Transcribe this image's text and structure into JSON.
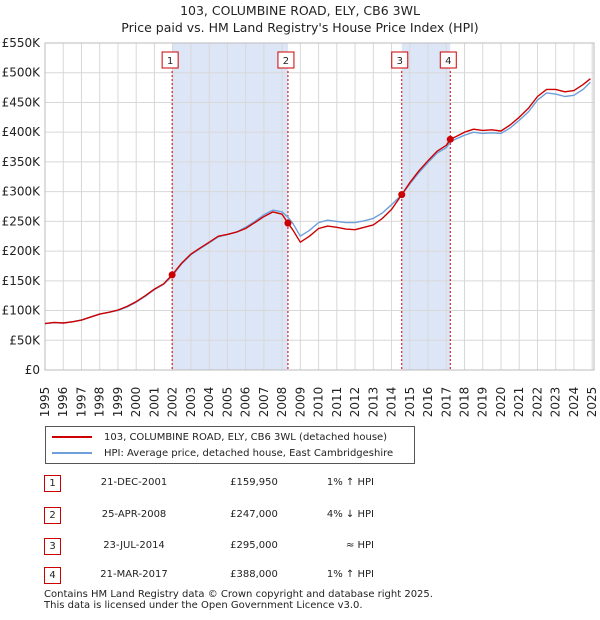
{
  "chart_data": {
    "type": "line",
    "title": "103, COLUMBINE ROAD, ELY, CB6 3WL",
    "subtitle": "Price paid vs. HM Land Registry's House Price Index (HPI)",
    "xlim": [
      1995,
      2025.1
    ],
    "ylim": [
      0,
      550000
    ],
    "x_ticks": [
      1995,
      1996,
      1997,
      1998,
      1999,
      2000,
      2001,
      2002,
      2003,
      2004,
      2005,
      2006,
      2007,
      2008,
      2009,
      2010,
      2011,
      2012,
      2013,
      2014,
      2015,
      2016,
      2017,
      2018,
      2019,
      2020,
      2021,
      2022,
      2023,
      2024,
      2025
    ],
    "y_ticks": [
      0,
      50000,
      100000,
      150000,
      200000,
      250000,
      300000,
      350000,
      400000,
      450000,
      500000,
      550000
    ],
    "y_tick_labels": [
      "£0",
      "£50K",
      "£100K",
      "£150K",
      "£200K",
      "£250K",
      "£300K",
      "£350K",
      "£400K",
      "£450K",
      "£500K",
      "£550K"
    ],
    "series": [
      {
        "name": "103, COLUMBINE ROAD, ELY, CB6 3WL (detached house)",
        "color": "#cc0000",
        "points": [
          [
            1995.0,
            78000
          ],
          [
            1995.5,
            80000
          ],
          [
            1996.0,
            79000
          ],
          [
            1996.5,
            81000
          ],
          [
            1997.0,
            84000
          ],
          [
            1997.5,
            89000
          ],
          [
            1998.0,
            94000
          ],
          [
            1998.5,
            97000
          ],
          [
            1999.0,
            101000
          ],
          [
            1999.5,
            107000
          ],
          [
            2000.0,
            115000
          ],
          [
            2000.5,
            125000
          ],
          [
            2001.0,
            136000
          ],
          [
            2001.5,
            145000
          ],
          [
            2001.97,
            159950
          ],
          [
            2002.5,
            180000
          ],
          [
            2003.0,
            195000
          ],
          [
            2003.5,
            205000
          ],
          [
            2004.0,
            215000
          ],
          [
            2004.5,
            225000
          ],
          [
            2005.0,
            228000
          ],
          [
            2005.5,
            232000
          ],
          [
            2006.0,
            238000
          ],
          [
            2006.5,
            248000
          ],
          [
            2007.0,
            258000
          ],
          [
            2007.5,
            266000
          ],
          [
            2008.0,
            262000
          ],
          [
            2008.32,
            247000
          ],
          [
            2008.6,
            235000
          ],
          [
            2009.0,
            215000
          ],
          [
            2009.5,
            225000
          ],
          [
            2010.0,
            238000
          ],
          [
            2010.5,
            242000
          ],
          [
            2011.0,
            240000
          ],
          [
            2011.5,
            237000
          ],
          [
            2012.0,
            236000
          ],
          [
            2012.5,
            240000
          ],
          [
            2013.0,
            244000
          ],
          [
            2013.5,
            255000
          ],
          [
            2014.0,
            270000
          ],
          [
            2014.56,
            295000
          ],
          [
            2015.0,
            315000
          ],
          [
            2015.5,
            335000
          ],
          [
            2016.0,
            352000
          ],
          [
            2016.5,
            368000
          ],
          [
            2017.0,
            378000
          ],
          [
            2017.22,
            388000
          ],
          [
            2017.5,
            392000
          ],
          [
            2018.0,
            400000
          ],
          [
            2018.5,
            405000
          ],
          [
            2019.0,
            403000
          ],
          [
            2019.5,
            404000
          ],
          [
            2020.0,
            402000
          ],
          [
            2020.5,
            412000
          ],
          [
            2021.0,
            425000
          ],
          [
            2021.5,
            440000
          ],
          [
            2022.0,
            460000
          ],
          [
            2022.5,
            472000
          ],
          [
            2023.0,
            472000
          ],
          [
            2023.5,
            468000
          ],
          [
            2024.0,
            470000
          ],
          [
            2024.5,
            480000
          ],
          [
            2024.9,
            490000
          ]
        ]
      },
      {
        "name": "HPI: Average price, detached house, East Cambridgeshire",
        "color": "#6f9fd8",
        "points": [
          [
            1995.0,
            78000
          ],
          [
            1995.5,
            79500
          ],
          [
            1996.0,
            79000
          ],
          [
            1996.5,
            81000
          ],
          [
            1997.0,
            84000
          ],
          [
            1997.5,
            89000
          ],
          [
            1998.0,
            94000
          ],
          [
            1998.5,
            97000
          ],
          [
            1999.0,
            100000
          ],
          [
            1999.5,
            106000
          ],
          [
            2000.0,
            114000
          ],
          [
            2000.5,
            124000
          ],
          [
            2001.0,
            135000
          ],
          [
            2001.5,
            144000
          ],
          [
            2001.97,
            158000
          ],
          [
            2002.5,
            179000
          ],
          [
            2003.0,
            194000
          ],
          [
            2003.5,
            204000
          ],
          [
            2004.0,
            214000
          ],
          [
            2004.5,
            224000
          ],
          [
            2005.0,
            228000
          ],
          [
            2005.5,
            232000
          ],
          [
            2006.0,
            240000
          ],
          [
            2006.5,
            250000
          ],
          [
            2007.0,
            261000
          ],
          [
            2007.5,
            269000
          ],
          [
            2008.0,
            266000
          ],
          [
            2008.32,
            257000
          ],
          [
            2008.6,
            246000
          ],
          [
            2009.0,
            225000
          ],
          [
            2009.5,
            235000
          ],
          [
            2010.0,
            248000
          ],
          [
            2010.5,
            252000
          ],
          [
            2011.0,
            250000
          ],
          [
            2011.5,
            248000
          ],
          [
            2012.0,
            248000
          ],
          [
            2012.5,
            251000
          ],
          [
            2013.0,
            255000
          ],
          [
            2013.5,
            264000
          ],
          [
            2014.0,
            278000
          ],
          [
            2014.56,
            295000
          ],
          [
            2015.0,
            313000
          ],
          [
            2015.5,
            332000
          ],
          [
            2016.0,
            349000
          ],
          [
            2016.5,
            365000
          ],
          [
            2017.0,
            374000
          ],
          [
            2017.22,
            384000
          ],
          [
            2017.5,
            388000
          ],
          [
            2018.0,
            395000
          ],
          [
            2018.5,
            400000
          ],
          [
            2019.0,
            398000
          ],
          [
            2019.5,
            399000
          ],
          [
            2020.0,
            398000
          ],
          [
            2020.5,
            407000
          ],
          [
            2021.0,
            420000
          ],
          [
            2021.5,
            434000
          ],
          [
            2022.0,
            454000
          ],
          [
            2022.5,
            466000
          ],
          [
            2023.0,
            464000
          ],
          [
            2023.5,
            460000
          ],
          [
            2024.0,
            462000
          ],
          [
            2024.5,
            472000
          ],
          [
            2024.9,
            484000
          ]
        ]
      }
    ],
    "markers": [
      {
        "label": "1",
        "x": 2001.97,
        "y": 159950
      },
      {
        "label": "2",
        "x": 2008.32,
        "y": 247000
      },
      {
        "label": "3",
        "x": 2014.56,
        "y": 295000
      },
      {
        "label": "4",
        "x": 2017.22,
        "y": 388000
      }
    ],
    "shaded_ranges": [
      [
        2001.97,
        2008.32
      ],
      [
        2014.56,
        2017.22
      ]
    ],
    "colors": {
      "price": "#cc0000",
      "hpi": "#6f9fd8",
      "shade": "#dde6f7",
      "marker_dash": "#cc0000"
    }
  },
  "legend": {
    "price_label": "103, COLUMBINE ROAD, ELY, CB6 3WL (detached house)",
    "hpi_label": "HPI: Average price, detached house, East Cambridgeshire"
  },
  "transactions": [
    {
      "num": "1",
      "date": "21-DEC-2001",
      "price": "£159,950",
      "hpi": "1% ↑ HPI"
    },
    {
      "num": "2",
      "date": "25-APR-2008",
      "price": "£247,000",
      "hpi": "4% ↓ HPI"
    },
    {
      "num": "3",
      "date": "23-JUL-2014",
      "price": "£295,000",
      "hpi": "≈ HPI"
    },
    {
      "num": "4",
      "date": "21-MAR-2017",
      "price": "£388,000",
      "hpi": "1% ↑ HPI"
    }
  ],
  "footer": {
    "line1": "Contains HM Land Registry data © Crown copyright and database right 2025.",
    "line2": "This data is licensed under the Open Government Licence v3.0."
  }
}
